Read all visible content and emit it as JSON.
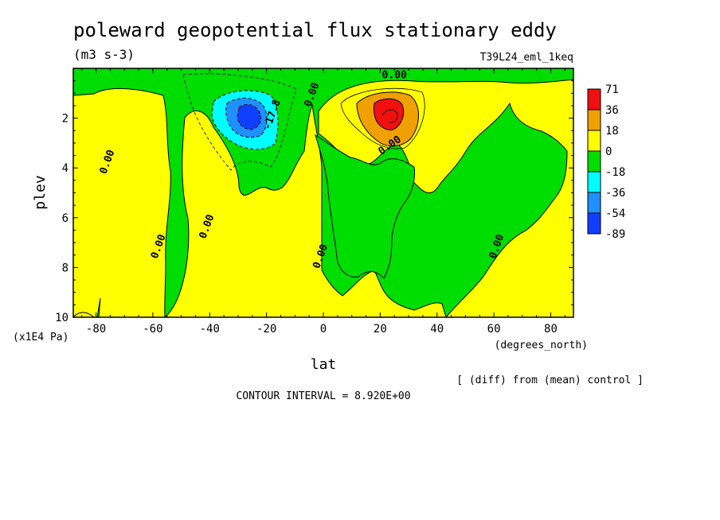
{
  "chart_data": {
    "type": "heatmap",
    "title": "poleward geopotential flux stationary eddy",
    "units": "(m3 s-3)",
    "run_label": "T39L24_eml_1keq",
    "xlabel": "lat",
    "xunits": "(degrees_north)",
    "ylabel": "plev",
    "yunits": "(x1E4 Pa)",
    "xlim": [
      -88,
      88
    ],
    "ylim": [
      10,
      0
    ],
    "x_ticks": [
      -80,
      -60,
      -40,
      -20,
      0,
      20,
      40,
      60,
      80
    ],
    "y_ticks": [
      2,
      4,
      6,
      8,
      10
    ],
    "diff_note": "[ (diff) from (mean) control ]",
    "contour_interval": "CONTOUR INTERVAL = 8.920E+00",
    "colorbar": {
      "labels": [
        "71",
        "36",
        "18",
        "0",
        "-18",
        "-36",
        "-54",
        "-89"
      ],
      "colors": [
        "#f01010",
        "#f0a000",
        "#ffff00",
        "#00dd00",
        "#00ffff",
        "#1e90ff",
        "#1040ff"
      ]
    },
    "contour_labels": [
      {
        "text": "0.00",
        "lat": 25,
        "plev": 0.4
      },
      {
        "text": "0.00",
        "lat": 24,
        "plev": 3.2
      },
      {
        "text": "0.00",
        "lat": -3,
        "plev": 1.1
      },
      {
        "text": "-17.8",
        "lat": -17,
        "plev": 1.9
      },
      {
        "text": "0.00",
        "lat": -75,
        "plev": 3.8
      },
      {
        "text": "0.00",
        "lat": -40,
        "plev": 6.4
      },
      {
        "text": "0.00",
        "lat": -57,
        "plev": 7.2
      },
      {
        "text": "0.00",
        "lat": 0,
        "plev": 7.6
      },
      {
        "text": "0.00",
        "lat": 62,
        "plev": 7.2
      }
    ],
    "features": [
      {
        "kind": "minimum",
        "lat": -26,
        "plev": 2.0,
        "value": -89
      },
      {
        "kind": "maximum",
        "lat": 22,
        "plev": 1.8,
        "value": 71
      }
    ]
  }
}
